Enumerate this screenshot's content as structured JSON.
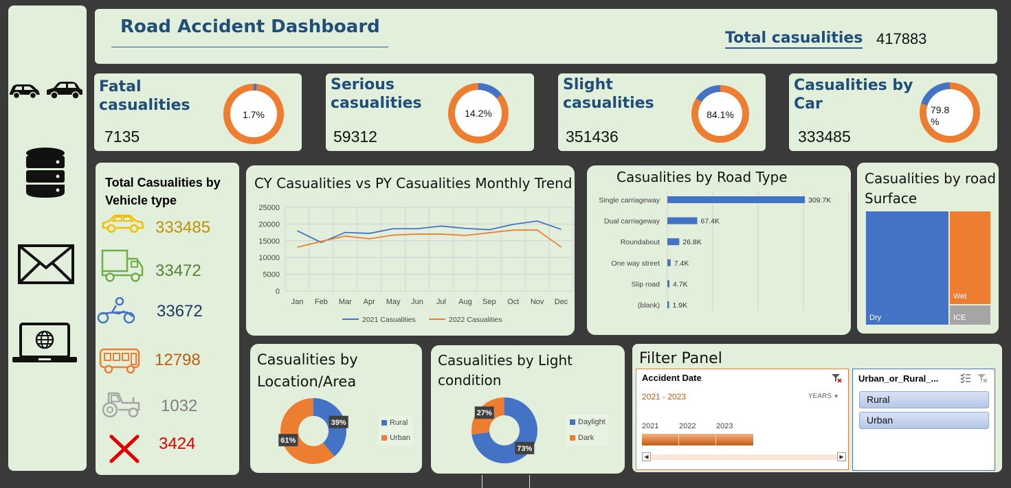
{
  "header": {
    "title": "Road Accident Dashboard",
    "total_label": "Total casualities",
    "total_value": "417883"
  },
  "sidebar": {
    "icons": [
      "cars-icon",
      "database-icon",
      "mail-icon",
      "laptop-globe-icon"
    ]
  },
  "kpis": {
    "fatal": {
      "label_line1": "Fatal",
      "label_line2": "casualities",
      "value": "7135",
      "pct_label": "1.7%",
      "pct": 0.017,
      "color": "#ed7d31",
      "accent": "#4472c4"
    },
    "serious": {
      "label_line1": "Serious",
      "label_line2": "casualities",
      "value": "59312",
      "pct_label": "14.2%",
      "pct": 0.142,
      "color": "#ed7d31",
      "accent": "#4472c4"
    },
    "slight": {
      "label_line1": "Slight",
      "label_line2": "casualities",
      "value": "351436",
      "pct_label": "84.1%",
      "pct": 0.841,
      "color": "#4472c4",
      "accent": "#ed7d31"
    },
    "car": {
      "label_line1": "Casualities by",
      "label_line2": "Car",
      "value": "333485",
      "pct_label_1": "79.8",
      "pct_label_2": "%",
      "pct": 0.798,
      "color": "#4472c4",
      "accent": "#ed7d31"
    }
  },
  "vehicle": {
    "title_line1": "Total Casualities by",
    "title_line2": "Vehicle type",
    "items": [
      {
        "icon": "car-icon",
        "value": "333485",
        "color": "#bf9000"
      },
      {
        "icon": "truck-icon",
        "value": "33472",
        "color": "#548235"
      },
      {
        "icon": "motorcycle-icon",
        "value": "33672",
        "color": "#203864"
      },
      {
        "icon": "bus-icon",
        "value": "12798",
        "color": "#c55a11"
      },
      {
        "icon": "tractor-icon",
        "value": "1032",
        "color": "#7f7f7f"
      },
      {
        "icon": "cross-icon",
        "value": "3424",
        "color": "#e00000"
      }
    ]
  },
  "chart_data": [
    {
      "type": "line",
      "title": "CY Casualities vs PY Casualities Monthly Trend",
      "categories": [
        "Jan",
        "Feb",
        "Mar",
        "Apr",
        "May",
        "Jun",
        "Jul",
        "Aug",
        "Sep",
        "Oct",
        "Nov",
        "Dec"
      ],
      "series": [
        {
          "name": "2021 Casualities",
          "color": "#4472c4",
          "values": [
            18000,
            14500,
            17500,
            17200,
            18600,
            18600,
            19400,
            18700,
            18300,
            19900,
            20900,
            18400
          ]
        },
        {
          "name": "2022 Casualities",
          "color": "#ed7d31",
          "values": [
            13100,
            14800,
            16400,
            15600,
            16700,
            17000,
            17000,
            16600,
            17400,
            18200,
            18200,
            13100
          ]
        }
      ],
      "yticks": [
        "25000",
        "20000",
        "15000",
        "10000",
        "5000",
        "0"
      ],
      "ylim": [
        0,
        25000
      ]
    },
    {
      "type": "bar",
      "title": "Casualities by Road Type",
      "categories": [
        "Single carriageway",
        "Dual carriageway",
        "Roundabout",
        "One way street",
        "Slip road",
        "(blank)"
      ],
      "values": [
        309700,
        67400,
        26800,
        7400,
        4700,
        1900
      ],
      "labels": [
        "309.7K",
        "67.4K",
        "26.8K",
        "7.4K",
        "4.7K",
        "1.9K"
      ],
      "color": "#4472c4"
    },
    {
      "type": "treemap",
      "title_line1": "Casualities by road",
      "title_line2": "Surface",
      "items": [
        {
          "name": "Dry",
          "color": "#4472c4"
        },
        {
          "name": "Wet",
          "color": "#ed7d31"
        },
        {
          "name": "ICE",
          "color": "#a5a5a5"
        }
      ]
    },
    {
      "type": "pie",
      "title_line1": "Casualities by",
      "title_line2": "Location/Area",
      "slices": [
        {
          "name": "Rural",
          "value": 39,
          "label": "39%",
          "color": "#4472c4"
        },
        {
          "name": "Urban",
          "value": 61,
          "label": "61%",
          "color": "#ed7d31"
        }
      ]
    },
    {
      "type": "pie",
      "title_line1": "Casualities by Light",
      "title_line2": "condition",
      "slices": [
        {
          "name": "Daylight",
          "value": 73,
          "label": "73%",
          "color": "#4472c4"
        },
        {
          "name": "Dark",
          "value": 27,
          "label": "27%",
          "color": "#ed7d31"
        }
      ]
    }
  ],
  "filter": {
    "title": "Filter Panel",
    "timeline": {
      "header": "Accident Date",
      "range": "2021 - 2023",
      "unit": "YEARS",
      "years": [
        "2021",
        "2022",
        "2023"
      ]
    },
    "slicer": {
      "header": "Urban_or_Rural_...",
      "options": [
        "Rural",
        "Urban"
      ]
    }
  }
}
